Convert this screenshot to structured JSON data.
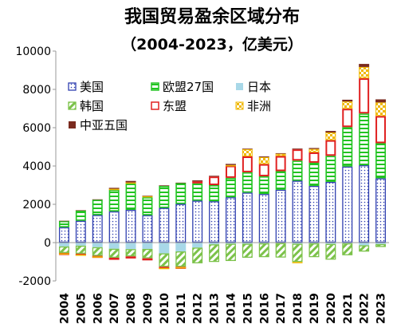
{
  "chart_data": {
    "type": "bar",
    "stacked": true,
    "title": "我国贸易盈余区域分布",
    "subtitle": "（2004-2023，亿美元）",
    "xlabel": "",
    "ylabel": "",
    "ylim": [
      -2000,
      10000
    ],
    "yticks": [
      -2000,
      0,
      2000,
      4000,
      6000,
      8000,
      10000
    ],
    "grid": false,
    "legend_position": "top-left",
    "categories": [
      "2004",
      "2005",
      "2006",
      "2007",
      "2008",
      "2009",
      "2010",
      "2011",
      "2012",
      "2013",
      "2014",
      "2015",
      "2016",
      "2017",
      "2018",
      "2019",
      "2020",
      "2021",
      "2022",
      "2023"
    ],
    "series": [
      {
        "name": "美国",
        "color": "#3040b0",
        "pattern": "dots",
        "values": [
          800,
          1140,
          1440,
          1630,
          1710,
          1430,
          1810,
          2020,
          2190,
          2160,
          2370,
          2610,
          2540,
          2760,
          3230,
          2960,
          3170,
          3970,
          4040,
          3360
        ]
      },
      {
        "name": "欧盟27国",
        "color": "#22c422",
        "pattern": "hlines",
        "values": [
          330,
          540,
          800,
          1130,
          1400,
          940,
          1150,
          1090,
          900,
          840,
          1010,
          1060,
          920,
          970,
          1050,
          1210,
          1360,
          2060,
          2700,
          1830
        ]
      },
      {
        "name": "日本",
        "color": "#a8d8e8",
        "pattern": "solid",
        "values": [
          -200,
          -160,
          -240,
          -320,
          -340,
          -330,
          -560,
          -460,
          -260,
          -90,
          -60,
          -60,
          -40,
          -30,
          -60,
          -40,
          -70,
          -40,
          -140,
          -80
        ]
      },
      {
        "name": "韩国",
        "color": "#7cc24a",
        "pattern": "diag",
        "values": [
          -340,
          -420,
          -450,
          -470,
          -380,
          -490,
          -700,
          -800,
          -820,
          -920,
          -900,
          -730,
          -720,
          -750,
          -950,
          -720,
          -820,
          -620,
          -330,
          -150
        ]
      },
      {
        "name": "东盟",
        "color": "#e02020",
        "pattern": "outline",
        "values": [
          -20,
          -40,
          -30,
          -60,
          -20,
          -60,
          -60,
          -20,
          110,
          450,
          640,
          830,
          640,
          790,
          590,
          540,
          820,
          960,
          1840,
          1420
        ]
      },
      {
        "name": "非洲",
        "color": "#f0b800",
        "pattern": "checker",
        "values": [
          -20,
          -30,
          -30,
          50,
          30,
          60,
          -30,
          -40,
          0,
          0,
          30,
          380,
          360,
          120,
          -30,
          180,
          400,
          380,
          590,
          710
        ]
      },
      {
        "name": "中亚五国",
        "color": "#7a2a1e",
        "pattern": "solid",
        "values": [
          10,
          10,
          20,
          50,
          80,
          20,
          30,
          20,
          50,
          40,
          60,
          30,
          40,
          30,
          40,
          50,
          80,
          90,
          160,
          160
        ]
      }
    ]
  }
}
